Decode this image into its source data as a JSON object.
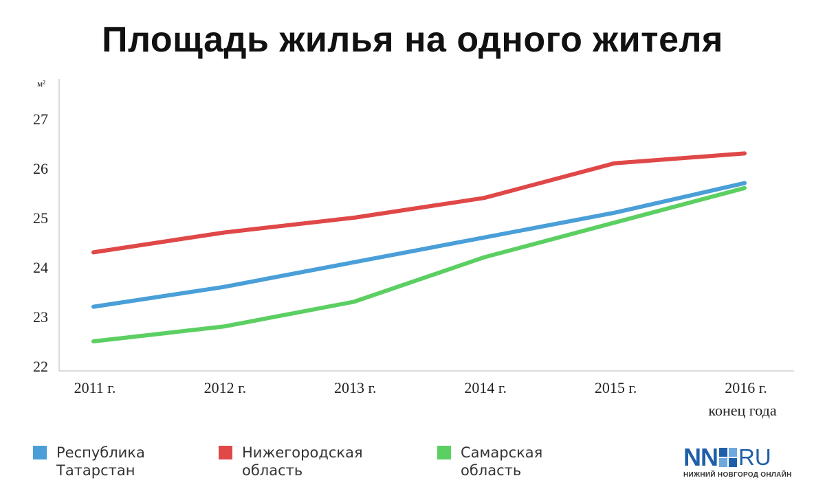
{
  "title": "Площадь жилья на одного жителя",
  "chart_data": {
    "type": "line",
    "title": "Площадь жилья на одного жителя",
    "ylabel": "м²",
    "xlabel": "",
    "ylim": [
      22,
      27.8
    ],
    "yticks": [
      22,
      23,
      24,
      25,
      26,
      27
    ],
    "categories": [
      "2011 г.",
      "2012 г.",
      "2013 г.",
      "2014 г.",
      "2015 г.",
      "2016 г."
    ],
    "category_sublabels": [
      "",
      "",
      "",
      "",
      "",
      "конец года"
    ],
    "grid": false,
    "legend_position": "bottom",
    "series": [
      {
        "name": "Республика\nТатарстан",
        "color": "#4a9fd8",
        "values": [
          23.2,
          23.6,
          24.1,
          24.6,
          25.1,
          25.7
        ]
      },
      {
        "name": "Нижегородская\nобласть",
        "color": "#e04848",
        "values": [
          24.3,
          24.7,
          25.0,
          25.4,
          26.1,
          26.3
        ]
      },
      {
        "name": "Самарская\nобласть",
        "color": "#5ccf62",
        "values": [
          22.5,
          22.8,
          23.3,
          24.2,
          24.9,
          25.6
        ]
      }
    ]
  },
  "logo": {
    "nn": "NN",
    "ru": "RU",
    "subtitle": "НИЖНИЙ НОВГОРОД ОНЛАЙН"
  }
}
